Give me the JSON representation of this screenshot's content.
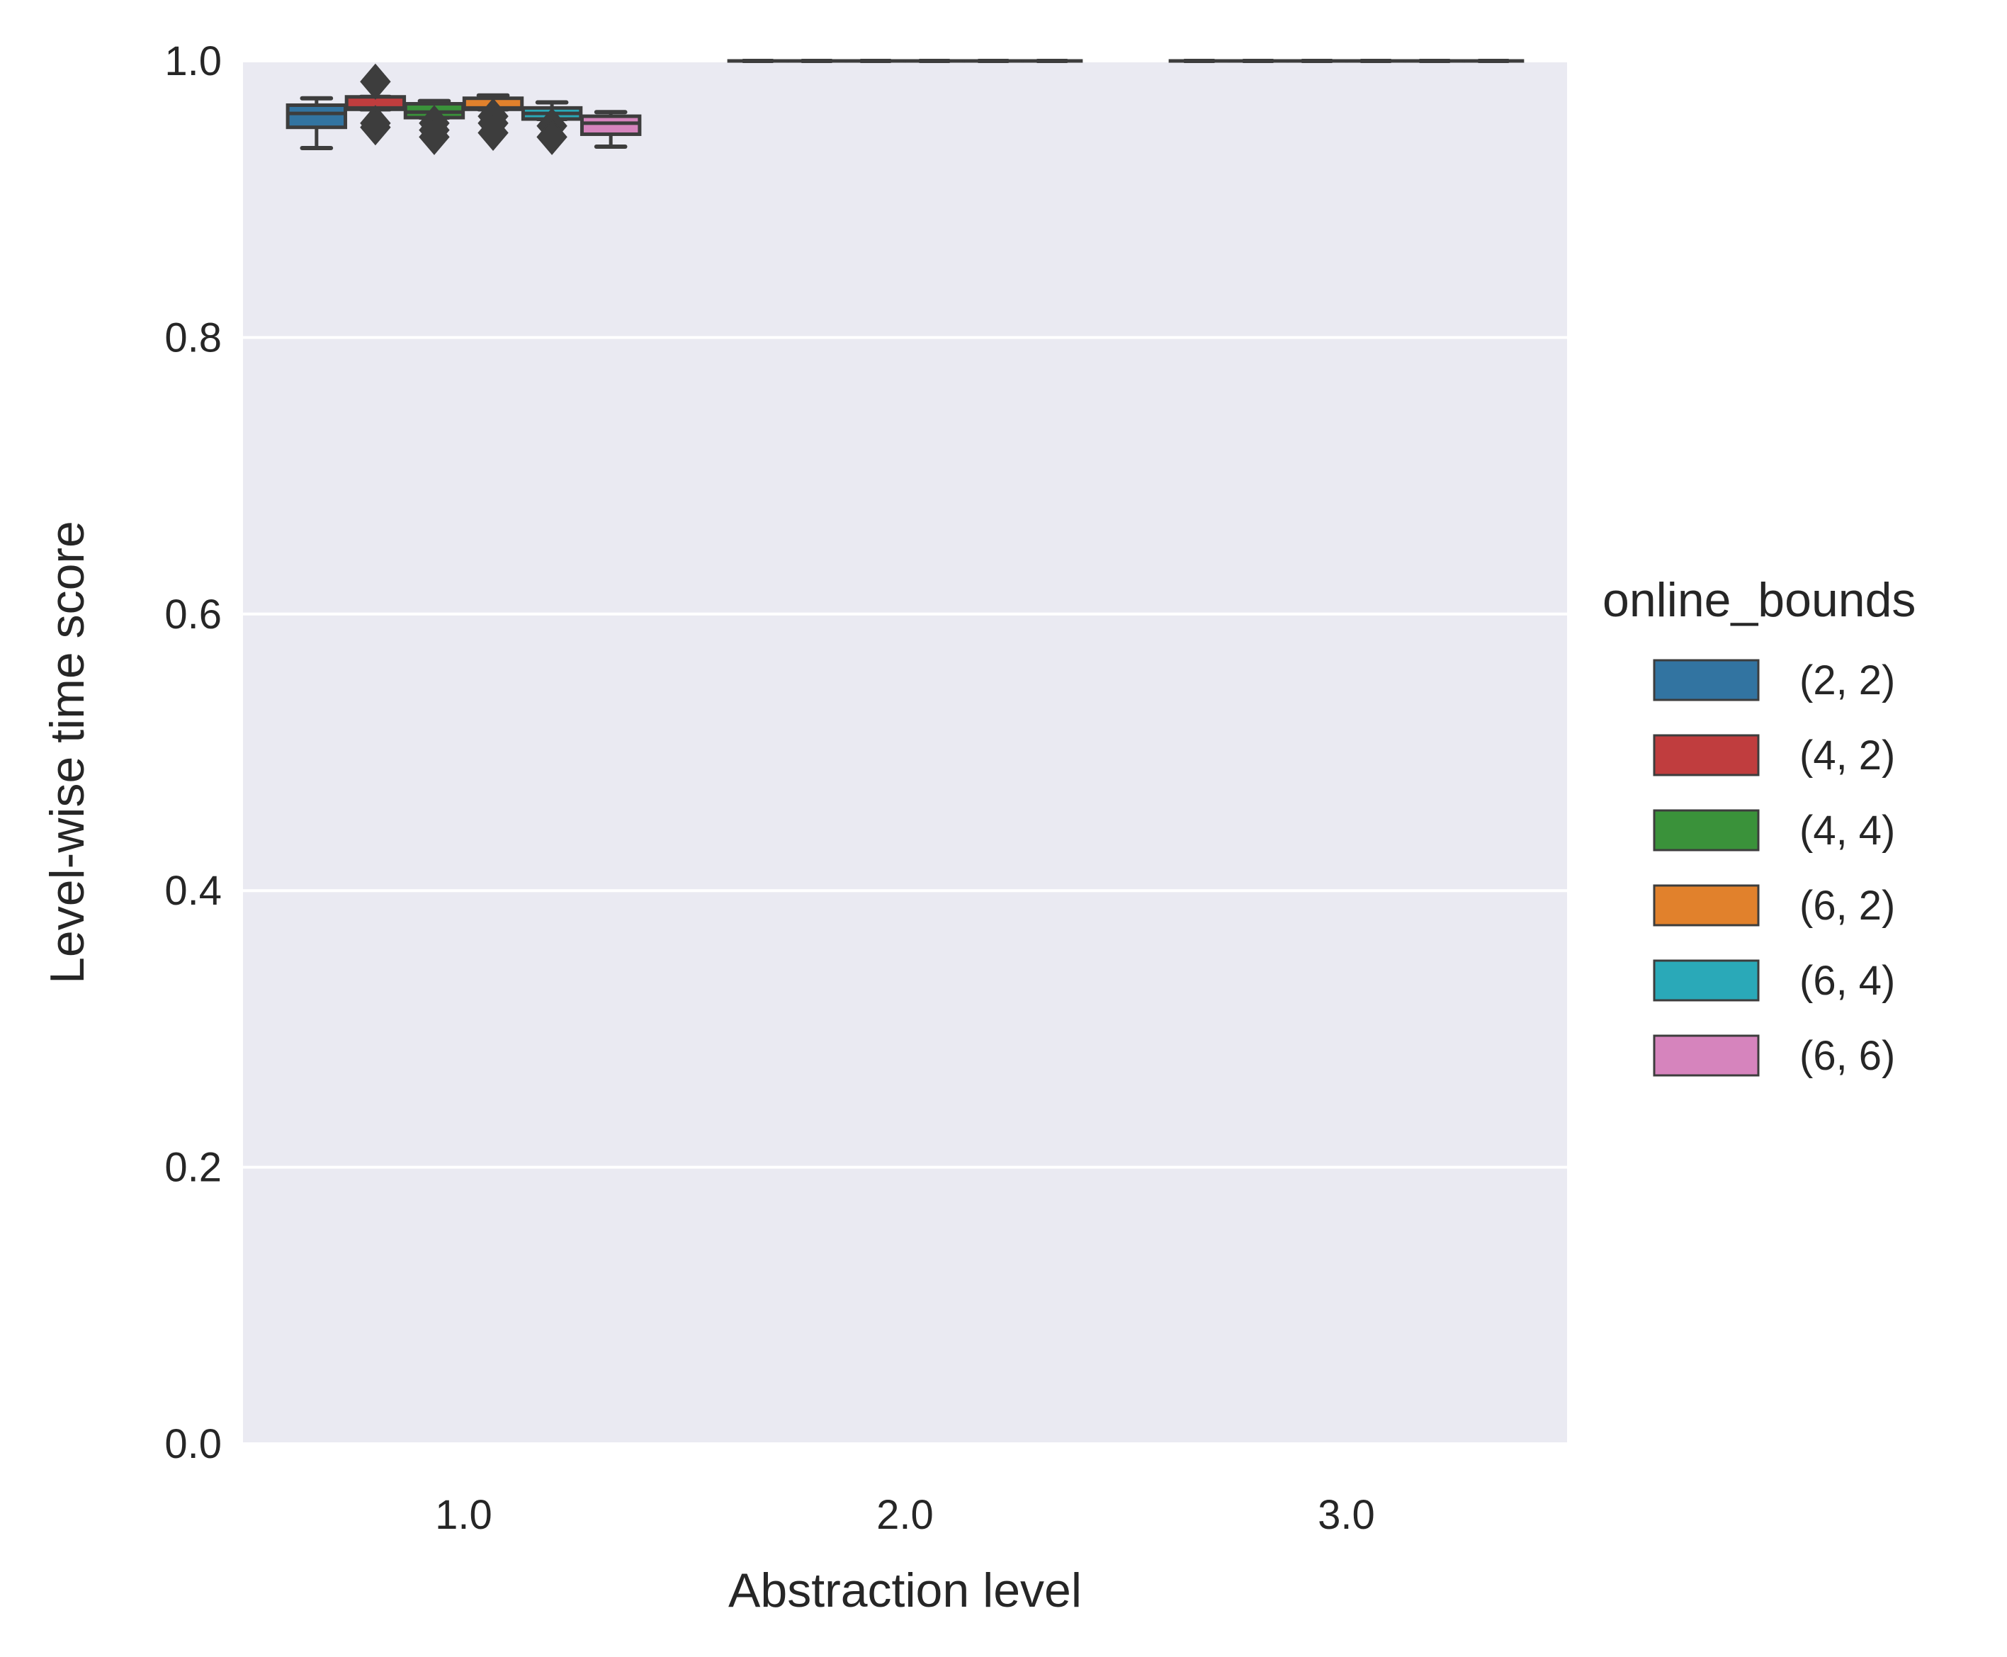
{
  "chart_data": {
    "type": "box",
    "title": "",
    "xlabel": "Abstraction level",
    "ylabel": "Level-wise time score",
    "categories": [
      "1.0",
      "2.0",
      "3.0"
    ],
    "ylim": [
      0.0,
      1.0
    ],
    "yticks": [
      "0.0",
      "0.2",
      "0.4",
      "0.6",
      "0.8",
      "1.0"
    ],
    "grid": true,
    "background": "#eaeaf2",
    "legend": {
      "title": "online_bounds",
      "placement": "right",
      "entries": [
        {
          "label": "(2, 2)",
          "color": "#3274a1"
        },
        {
          "label": "(4, 2)",
          "color": "#c03d3e"
        },
        {
          "label": "(4, 4)",
          "color": "#3a923a"
        },
        {
          "label": "(6, 2)",
          "color": "#e1812c"
        },
        {
          "label": "(6, 4)",
          "color": "#2aa9b8"
        },
        {
          "label": "(6, 6)",
          "color": "#d684bd"
        }
      ]
    },
    "series": [
      {
        "name": "(2, 2)",
        "boxes": [
          {
            "category": "1.0",
            "whisker_low": 0.937,
            "q1": 0.952,
            "median": 0.962,
            "q3": 0.968,
            "whisker_high": 0.973,
            "outliers": []
          },
          {
            "category": "2.0",
            "whisker_low": 1.0,
            "q1": 1.0,
            "median": 1.0,
            "q3": 1.0,
            "whisker_high": 1.0,
            "outliers": []
          },
          {
            "category": "3.0",
            "whisker_low": 1.0,
            "q1": 1.0,
            "median": 1.0,
            "q3": 1.0,
            "whisker_high": 1.0,
            "outliers": []
          }
        ]
      },
      {
        "name": "(4, 2)",
        "boxes": [
          {
            "category": "1.0",
            "whisker_low": 0.965,
            "q1": 0.965,
            "median": 0.966,
            "q3": 0.974,
            "whisker_high": 0.974,
            "outliers": [
              0.985,
              0.955,
              0.952
            ]
          },
          {
            "category": "2.0",
            "whisker_low": 1.0,
            "q1": 1.0,
            "median": 1.0,
            "q3": 1.0,
            "whisker_high": 1.0,
            "outliers": []
          },
          {
            "category": "3.0",
            "whisker_low": 1.0,
            "q1": 1.0,
            "median": 1.0,
            "q3": 1.0,
            "whisker_high": 1.0,
            "outliers": []
          }
        ]
      },
      {
        "name": "(4, 4)",
        "boxes": [
          {
            "category": "1.0",
            "whisker_low": 0.959,
            "q1": 0.959,
            "median": 0.963,
            "q3": 0.969,
            "whisker_high": 0.971,
            "outliers": [
              0.955,
              0.95,
              0.945
            ]
          },
          {
            "category": "2.0",
            "whisker_low": 1.0,
            "q1": 1.0,
            "median": 1.0,
            "q3": 1.0,
            "whisker_high": 1.0,
            "outliers": []
          },
          {
            "category": "3.0",
            "whisker_low": 1.0,
            "q1": 1.0,
            "median": 1.0,
            "q3": 1.0,
            "whisker_high": 1.0,
            "outliers": []
          }
        ]
      },
      {
        "name": "(6, 2)",
        "boxes": [
          {
            "category": "1.0",
            "whisker_low": 0.965,
            "q1": 0.965,
            "median": 0.966,
            "q3": 0.973,
            "whisker_high": 0.975,
            "outliers": [
              0.96,
              0.955,
              0.948
            ]
          },
          {
            "category": "2.0",
            "whisker_low": 1.0,
            "q1": 1.0,
            "median": 1.0,
            "q3": 1.0,
            "whisker_high": 1.0,
            "outliers": []
          },
          {
            "category": "3.0",
            "whisker_low": 1.0,
            "q1": 1.0,
            "median": 1.0,
            "q3": 1.0,
            "whisker_high": 1.0,
            "outliers": []
          }
        ]
      },
      {
        "name": "(6, 4)",
        "boxes": [
          {
            "category": "1.0",
            "whisker_low": 0.958,
            "q1": 0.958,
            "median": 0.962,
            "q3": 0.966,
            "whisker_high": 0.97,
            "outliers": [
              0.953,
              0.945
            ]
          },
          {
            "category": "2.0",
            "whisker_low": 1.0,
            "q1": 1.0,
            "median": 1.0,
            "q3": 1.0,
            "whisker_high": 1.0,
            "outliers": []
          },
          {
            "category": "3.0",
            "whisker_low": 1.0,
            "q1": 1.0,
            "median": 1.0,
            "q3": 1.0,
            "whisker_high": 1.0,
            "outliers": []
          }
        ]
      },
      {
        "name": "(6, 6)",
        "boxes": [
          {
            "category": "1.0",
            "whisker_low": 0.938,
            "q1": 0.947,
            "median": 0.955,
            "q3": 0.96,
            "whisker_high": 0.963,
            "outliers": []
          },
          {
            "category": "2.0",
            "whisker_low": 1.0,
            "q1": 1.0,
            "median": 1.0,
            "q3": 1.0,
            "whisker_high": 1.0,
            "outliers": []
          },
          {
            "category": "3.0",
            "whisker_low": 1.0,
            "q1": 1.0,
            "median": 1.0,
            "q3": 1.0,
            "whisker_high": 1.0,
            "outliers": []
          }
        ]
      }
    ]
  }
}
